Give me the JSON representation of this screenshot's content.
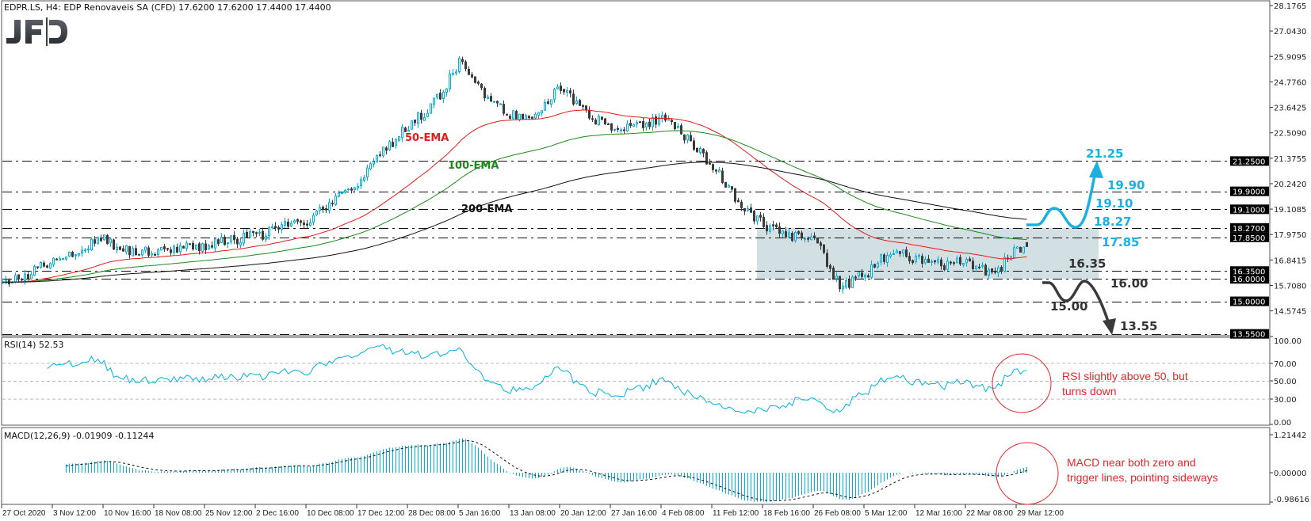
{
  "header": {
    "symbol_line": "EDPR.LS, H4:  EDP Renovaveis SA (CFD)  17.6200 17.6200 17.4400 17.4400"
  },
  "logo": "JFD",
  "colors": {
    "bull": "#00b0e0",
    "bear": "#3a3a3a",
    "ema50": "#e41a1c",
    "ema100": "#1a8a1a",
    "ema200": "#111111",
    "rsi": "#00b0e0",
    "macd": "#00b0e0",
    "zone": "#d3e0e3",
    "annotation_up": "#1ab0e0",
    "annotation_down": "#3a3a3a",
    "note": "#e8262b"
  },
  "price_axis": {
    "labels": [
      "28.1765",
      "27.0430",
      "25.9095",
      "24.7760",
      "23.6425",
      "22.5090",
      "21.3755",
      "20.2420",
      "19.1085",
      "17.9750",
      "16.8415",
      "15.7080",
      "14.5745"
    ]
  },
  "levels": [
    {
      "value": 21.25,
      "label": "21.2500"
    },
    {
      "value": 19.9,
      "label": "19.9000"
    },
    {
      "value": 19.1,
      "label": "19.1000"
    },
    {
      "value": 18.27,
      "label": "18.2700"
    },
    {
      "value": 17.85,
      "label": "17.8500"
    },
    {
      "value": 16.35,
      "label": "16.3500"
    },
    {
      "value": 16.0,
      "label": "16.0000"
    },
    {
      "value": 15.0,
      "label": "15.0000"
    },
    {
      "value": 13.55,
      "label": "13.5500"
    }
  ],
  "ema_labels": {
    "ema50": "50-EMA",
    "ema100": "100-EMA",
    "ema200": "200-EMA"
  },
  "scenario": {
    "up_labels": [
      "21.25",
      "19.90",
      "19.10",
      "18.27",
      "17.85"
    ],
    "down_labels": [
      "16.35",
      "16.00",
      "15.00",
      "13.55"
    ],
    "range_zone": [
      16.0,
      18.27
    ]
  },
  "rsi": {
    "title": "RSI(14) 52.53",
    "axis": [
      "100.00",
      "70.00",
      "50.00",
      "30.00",
      "0.00"
    ],
    "note": [
      "RSI slightly above 50, but",
      "turns down"
    ]
  },
  "macd": {
    "title": "MACD(12,26,9) -0.01909 -0.11244",
    "axis": [
      "1.21442",
      "0.00000",
      "-0.98616"
    ],
    "note": [
      "MACD near both zero and",
      "trigger lines, pointing sideways"
    ]
  },
  "time_axis": [
    "27 Oct 2020",
    "3 Nov 12:00",
    "10 Nov 16:00",
    "18 Nov 08:00",
    "25 Nov 12:00",
    "2 Dec 16:00",
    "10 Dec 08:00",
    "17 Dec 12:00",
    "28 Dec 08:00",
    "5 Jan 16:00",
    "13 Jan 08:00",
    "20 Jan 12:00",
    "27 Jan 16:00",
    "4 Feb 08:00",
    "11 Feb 12:00",
    "18 Feb 16:00",
    "26 Feb 08:00",
    "5 Mar 12:00",
    "12 Mar 16:00",
    "22 Mar 08:00",
    "29 Mar 12:00"
  ],
  "chart_data": {
    "type": "candlestick",
    "title": "EDPR.LS, H4",
    "timeframe": "H4",
    "ylim": [
      13.55,
      28.1765
    ],
    "closes_half_label_steps": [
      15.7,
      16.2,
      16.9,
      17.3,
      17.8,
      17.2,
      17.3,
      17.4,
      17.5,
      17.7,
      17.9,
      18.3,
      18.5,
      19.4,
      20.3,
      21.7,
      22.8,
      23.8,
      25.6,
      24.3,
      23.3,
      23.4,
      24.6,
      23.3,
      22.8,
      22.8,
      23.1,
      22.3,
      21.0,
      19.5,
      18.4,
      17.8,
      17.9,
      15.6,
      16.2,
      17.2,
      16.9,
      16.6,
      16.8,
      16.2,
      17.3
    ],
    "last_bar": {
      "open": 17.62,
      "high": 17.62,
      "low": 17.44,
      "close": 17.44
    },
    "indicators": [
      "EMA 50",
      "EMA 100",
      "EMA 200",
      "RSI(14)",
      "MACD(12,26,9)"
    ],
    "rsi_last": 52.53,
    "macd_last": {
      "main": -0.01909,
      "signal": -0.11244
    }
  }
}
